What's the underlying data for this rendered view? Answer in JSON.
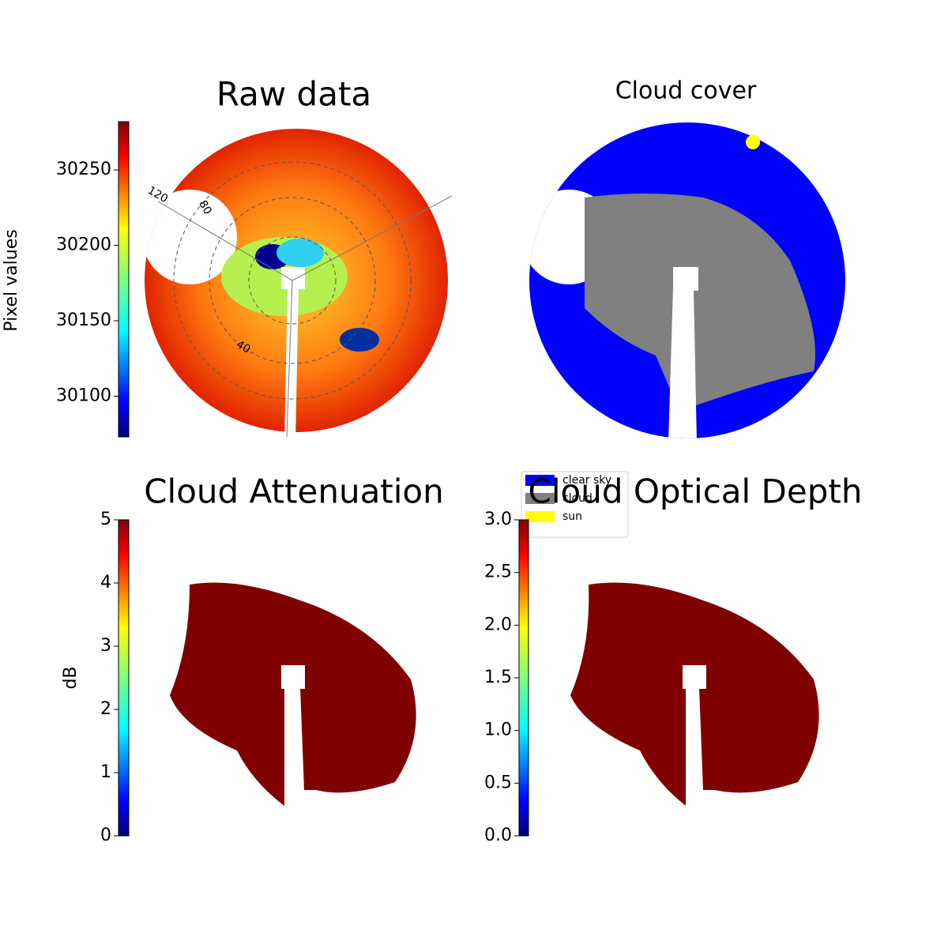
{
  "chart_data": [
    {
      "type": "image",
      "title": "Raw data",
      "colorbar_label": "Pixel values",
      "colormap": "jet",
      "clim": [
        30073,
        30282
      ],
      "cticks": [
        30100,
        30150,
        30200,
        30250
      ],
      "polar_labels": [
        "120",
        "80",
        "40"
      ]
    },
    {
      "type": "image",
      "title": "Cloud cover",
      "series": [
        {
          "name": "clear sky",
          "color": "#0000ff"
        },
        {
          "name": "cloud",
          "color": "#808080"
        },
        {
          "name": "sun",
          "color": "#ffff00"
        }
      ]
    },
    {
      "type": "image",
      "title": "Cloud Attenuation",
      "colorbar_label": "dB",
      "colormap": "jet",
      "clim": [
        0,
        5
      ],
      "cticks": [
        0,
        1,
        2,
        3,
        4,
        5
      ]
    },
    {
      "type": "image",
      "title": "Cloud Optical Depth",
      "colormap": "jet",
      "clim": [
        0,
        3
      ],
      "cticks": [
        {
          "value": 0,
          "label": "0.0"
        },
        {
          "value": 0.5,
          "label": "0.5"
        },
        {
          "value": 1,
          "label": "1.0"
        },
        {
          "value": 1.5,
          "label": "1.5"
        },
        {
          "value": 2,
          "label": "2.0"
        },
        {
          "value": 2.5,
          "label": "2.5"
        },
        {
          "value": 3,
          "label": "3.0"
        }
      ]
    }
  ]
}
